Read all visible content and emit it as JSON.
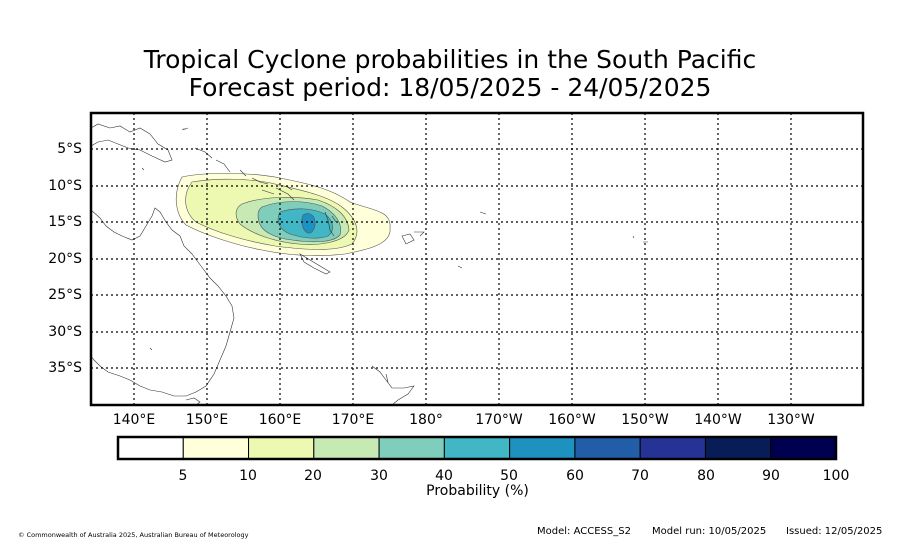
{
  "title": {
    "line1": "Tropical Cyclone probabilities in the South Pacific",
    "line2": "Forecast period: 18/05/2025 - 24/05/2025"
  },
  "map": {
    "lat_labels": [
      "5°S",
      "10°S",
      "15°S",
      "20°S",
      "25°S",
      "30°S",
      "35°S"
    ],
    "lon_labels": [
      "140°E",
      "150°E",
      "160°E",
      "170°E",
      "180°",
      "170°W",
      "160°W",
      "150°W",
      "140°W",
      "130°W"
    ],
    "probability_contours": [
      5,
      10,
      20,
      30,
      40,
      50
    ],
    "peak_location": "near 164°E, 15°S"
  },
  "colorbar": {
    "title": "Probability (%)",
    "tick_labels": [
      "5",
      "10",
      "20",
      "30",
      "40",
      "50",
      "60",
      "70",
      "80",
      "90",
      "100"
    ],
    "bins": [
      {
        "range": "0-5",
        "color": "#ffffff"
      },
      {
        "range": "5-10",
        "color": "#ffffd9"
      },
      {
        "range": "10-20",
        "color": "#edf8b1"
      },
      {
        "range": "20-30",
        "color": "#c7e9b4"
      },
      {
        "range": "30-40",
        "color": "#7fcdbb"
      },
      {
        "range": "40-50",
        "color": "#41b6c4"
      },
      {
        "range": "50-60",
        "color": "#1d91c0"
      },
      {
        "range": "60-70",
        "color": "#225ea8"
      },
      {
        "range": "70-80",
        "color": "#253494"
      },
      {
        "range": "80-90",
        "color": "#081d58"
      },
      {
        "range": "90-100",
        "color": "#000050"
      }
    ]
  },
  "footer": {
    "copyright": "© Commonwealth of Australia 2025, Australian Bureau of Meteorology",
    "model": "Model: ACCESS_S2",
    "model_run": "Model run: 10/05/2025",
    "issued": "Issued: 12/05/2025"
  }
}
